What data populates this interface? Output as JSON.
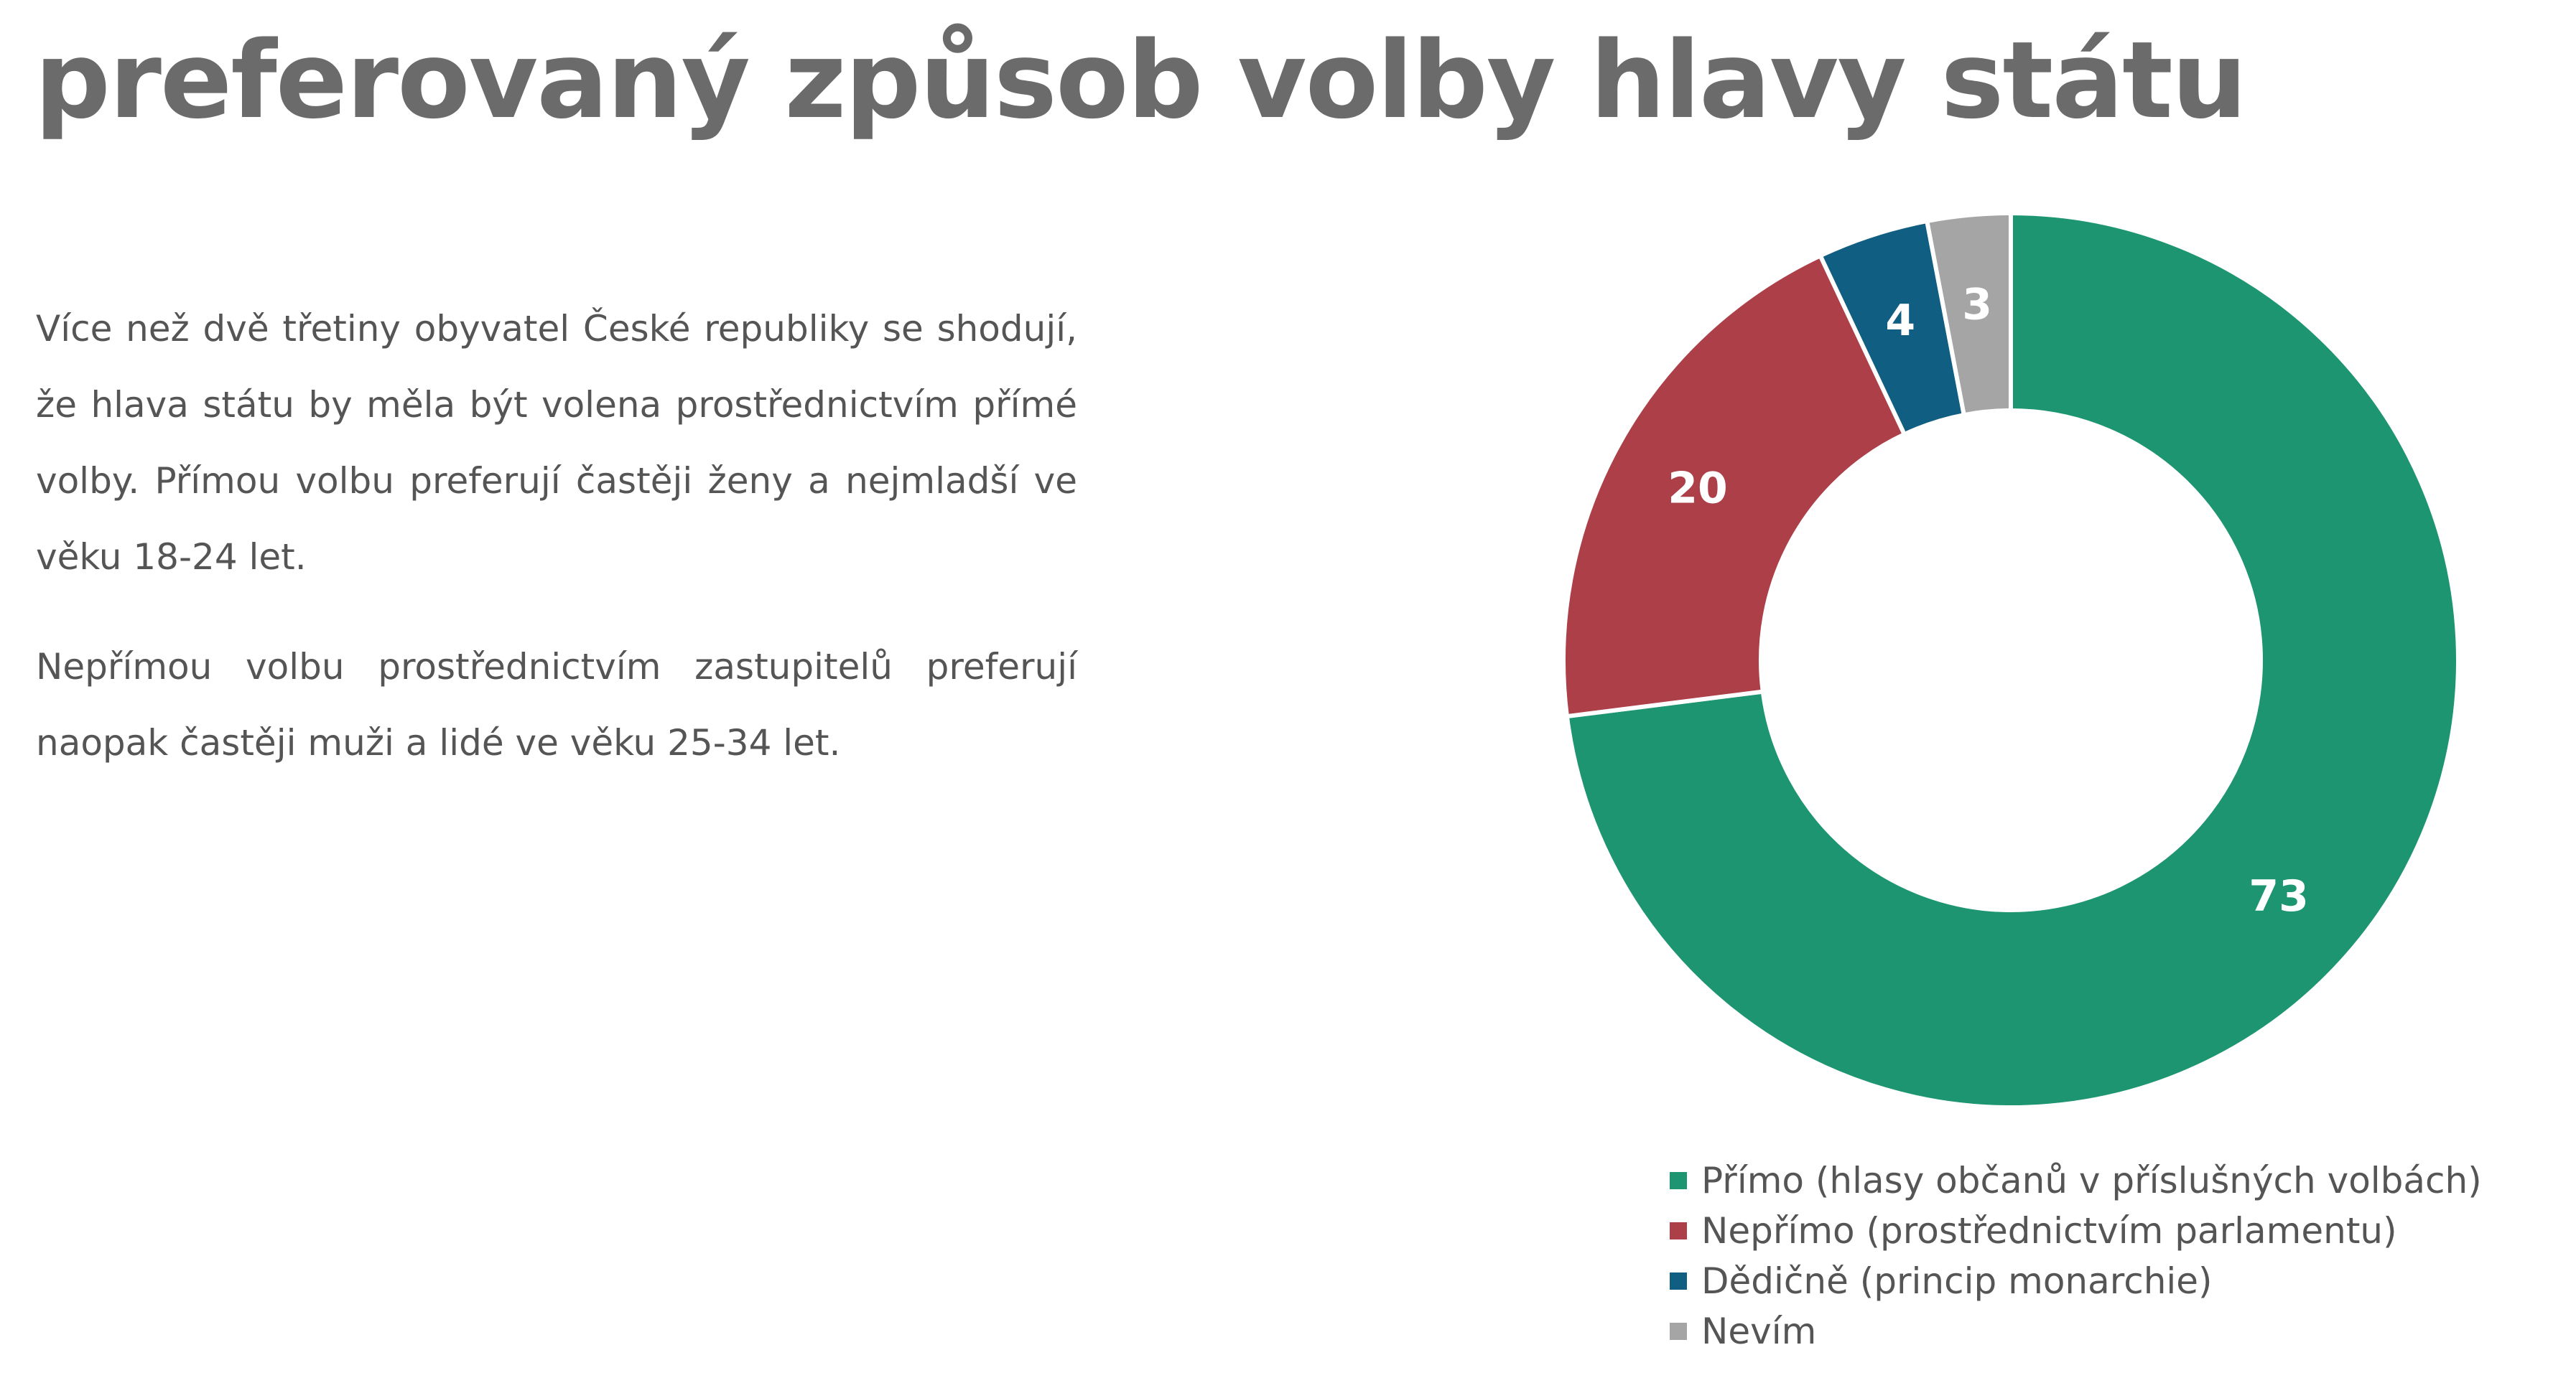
{
  "title": "preferovaný způsob volby hlavy státu",
  "paragraphs": [
    "Více než dvě třetiny obyvatel České republiky se shodují, že hlava státu by měla být volena prostřednictvím přímé volby. Přímou volbu preferují častěji ženy a nejmladší ve věku 18-24 let.",
    "Nepřímou volbu prostřednictvím zastupitelů preferují naopak častěji muži a lidé ve věku 25-34 let."
  ],
  "chart_data": {
    "type": "pie",
    "variant": "donut",
    "title": "",
    "start": "top",
    "direction": "clockwise",
    "legend_position": "bottom",
    "slices": [
      {
        "label": "Přímo (hlasy občanů v příslušných volbách)",
        "value": 73,
        "color": "#1d9570"
      },
      {
        "label": "Nepřímo (prostřednictvím parlamentu)",
        "value": 20,
        "color": "#ad3f48"
      },
      {
        "label": "Dědičně (princip monarchie)",
        "value": 4,
        "color": "#105e82"
      },
      {
        "label": "Nevím",
        "value": 3,
        "color": "#a5a5a5"
      }
    ],
    "data_label_color": "#ffffff"
  }
}
